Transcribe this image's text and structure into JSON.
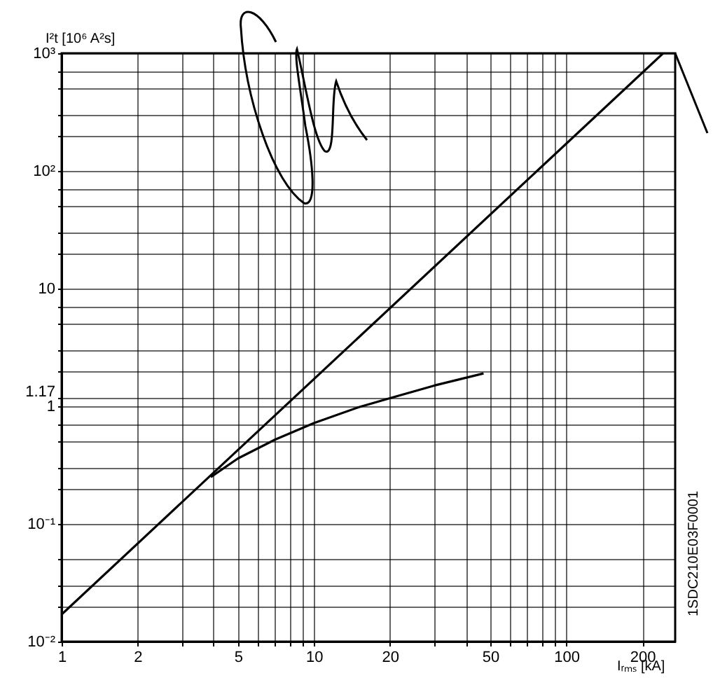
{
  "chart_data": {
    "type": "line",
    "xlabel": "Iᵣₘₛ [kA]",
    "ylabel": "I²t [10⁶ A²s]",
    "log": "xy",
    "grid": true,
    "marker": "none",
    "line_style": "solid",
    "xlim": [
      1,
      270
    ],
    "ylim": [
      0.01,
      1000
    ],
    "xticks": [
      1,
      2,
      {
        "value": 3,
        "label": null
      },
      {
        "value": 4,
        "label": null
      },
      5,
      {
        "value": 6,
        "label": null
      },
      {
        "value": 7,
        "label": null
      },
      {
        "value": 8,
        "label": null
      },
      {
        "value": 9,
        "label": null
      },
      10,
      20,
      {
        "value": 30,
        "label": null
      },
      {
        "value": 40,
        "label": null
      },
      50,
      {
        "value": 60,
        "label": null
      },
      {
        "value": 70,
        "label": null
      },
      {
        "value": 80,
        "label": null
      },
      {
        "value": 90,
        "label": null
      },
      100,
      200
    ],
    "yticks": [
      {
        "value": 0.01,
        "label": "10⁻²"
      },
      {
        "value": 0.02,
        "label": null
      },
      {
        "value": 0.03,
        "label": null
      },
      {
        "value": 0.05,
        "label": null
      },
      {
        "value": 0.1,
        "label": "10⁻¹"
      },
      {
        "value": 0.2,
        "label": null
      },
      {
        "value": 0.3,
        "label": null
      },
      {
        "value": 0.5,
        "label": null
      },
      {
        "value": 0.7,
        "label": null
      },
      1,
      1.17,
      {
        "value": 2,
        "label": null
      },
      {
        "value": 3,
        "label": null
      },
      {
        "value": 5,
        "label": null
      },
      {
        "value": 7,
        "label": null
      },
      10,
      {
        "value": 20,
        "label": null
      },
      {
        "value": 30,
        "label": null
      },
      {
        "value": 50,
        "label": null
      },
      {
        "value": 70,
        "label": null
      },
      {
        "value": 100,
        "label": "10²"
      },
      {
        "value": 200,
        "label": null
      },
      {
        "value": 300,
        "label": null
      },
      {
        "value": 500,
        "label": null
      },
      {
        "value": 700,
        "label": null
      },
      {
        "value": 1000,
        "label": "10³"
      }
    ],
    "series": [
      {
        "color": "#000000",
        "x": [
          1,
          242
        ],
        "values": [
          0.017,
          1000
        ]
      },
      {
        "color": "#000000",
        "x": [
          3.9,
          5,
          7,
          10,
          15,
          20,
          30,
          47
        ],
        "values": [
          0.25,
          0.36,
          0.52,
          0.72,
          0.98,
          1.17,
          1.5,
          1.9
        ]
      }
    ],
    "annotations": [
      "1SDC210E03F0001"
    ]
  }
}
